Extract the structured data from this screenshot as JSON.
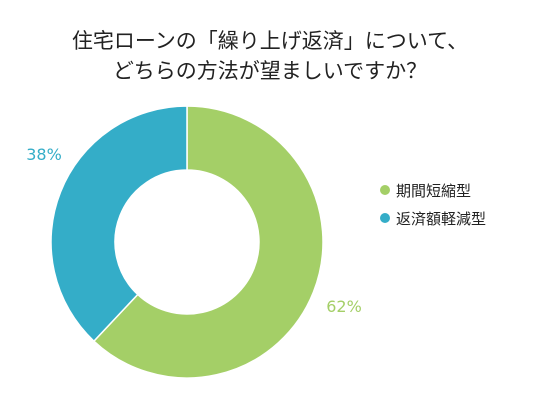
{
  "chart_data": {
    "type": "pie",
    "donut": true,
    "title_lines": [
      "住宅ローンの「繰り上げ返済」について、",
      "どちらの方法が望ましいですか？"
    ],
    "categories": [
      "期間短縮型",
      "返済額軽減型"
    ],
    "values": [
      62,
      38
    ],
    "value_labels": [
      "62%",
      "38%"
    ],
    "colors": [
      "#a4cf67",
      "#34adc8"
    ],
    "legend_position": "right"
  }
}
